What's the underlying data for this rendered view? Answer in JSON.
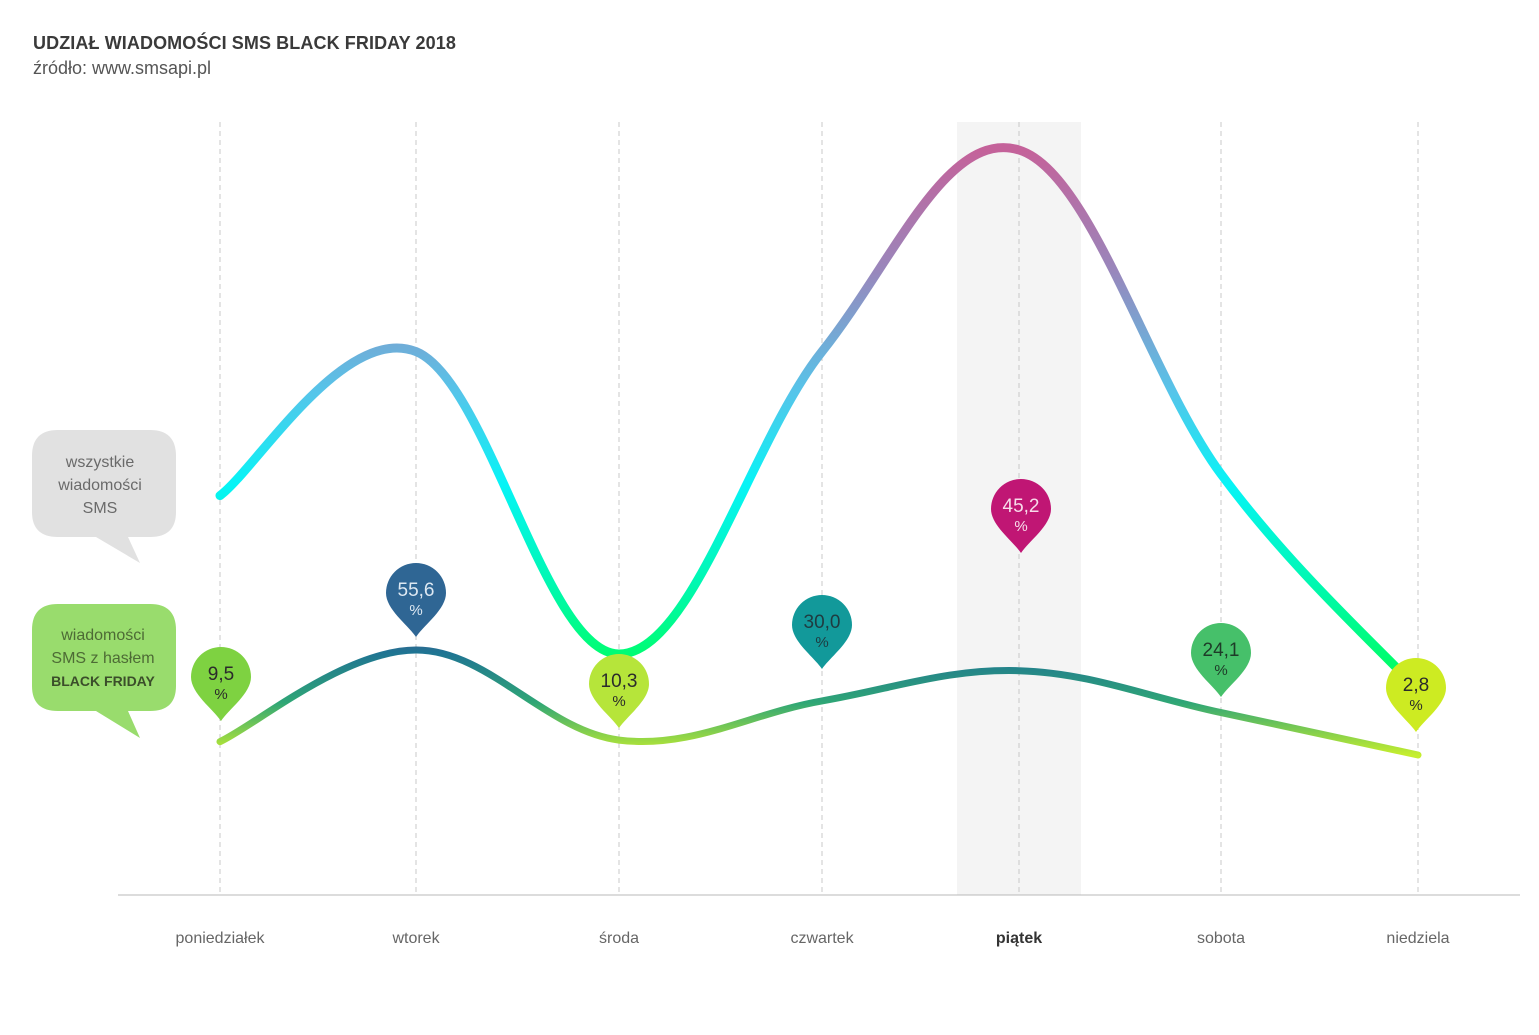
{
  "title": "UDZIAŁ WIADOMOŚCI SMS BLACK FRIDAY 2018",
  "subtitle": "źródło: www.smsapi.pl",
  "colors": {
    "all_line_high": "#c2629c",
    "all_line_mid": "#55c8e8",
    "all_line_low": "#00f5f5",
    "all_line_green": "#00f66e",
    "bf_line": "#2a8090",
    "highlight_band": "#f4f4f4",
    "legend_all_bg": "#e1e1e1",
    "legend_bf_bg": "#99dc6d"
  },
  "legend": {
    "all_sms": [
      "wszystkie",
      "wiadomości",
      "SMS"
    ],
    "bf_sms": [
      "wiadomości",
      "SMS z hasłem",
      "BLACK FRIDAY"
    ]
  },
  "chart_data": {
    "type": "line",
    "categories": [
      "poniedziałek",
      "wtorek",
      "środa",
      "czwartek",
      "piątek",
      "sobota",
      "niedziela"
    ],
    "highlight_category": "piątek",
    "series": [
      {
        "id": "all",
        "values": [
          52,
          72,
          30,
          72,
          100,
          55,
          25
        ],
        "ylim": [
          0,
          100
        ]
      },
      {
        "id": "bf",
        "values": [
          9.5,
          55.6,
          10.3,
          30.0,
          45.2,
          24.1,
          2.8
        ],
        "ylim": [
          0,
          100
        ]
      }
    ],
    "labels": [
      {
        "value": "9,5",
        "unit": "%",
        "color": "#7ed241",
        "text_color": "#2b2b2b"
      },
      {
        "value": "55,6",
        "unit": "%",
        "color": "#2f6694",
        "text_color": "#dde8f2"
      },
      {
        "value": "10,3",
        "unit": "%",
        "color": "#b6e53a",
        "text_color": "#2b2b2b"
      },
      {
        "value": "30,0",
        "unit": "%",
        "color": "#12999a",
        "text_color": "#1f3b40"
      },
      {
        "value": "45,2",
        "unit": "%",
        "color": "#c01674",
        "text_color": "#f7dcea"
      },
      {
        "value": "24,1",
        "unit": "%",
        "color": "#46c06a",
        "text_color": "#1e3b28"
      },
      {
        "value": "2,8",
        "unit": "%",
        "color": "#cdeb22",
        "text_color": "#2b2b2b"
      }
    ]
  }
}
